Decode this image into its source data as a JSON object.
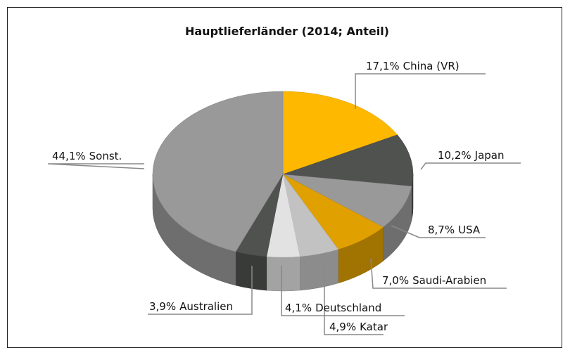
{
  "chart_data": {
    "type": "pie3d",
    "title": "Hauptlieferländer (2014; Anteil)",
    "categories": [
      "China (VR)",
      "Japan",
      "USA",
      "Saudi-Arabien",
      "Katar",
      "Deutschland",
      "Australien",
      "Sonst."
    ],
    "values": [
      17.1,
      10.2,
      8.7,
      7.0,
      4.9,
      4.1,
      3.9,
      44.1
    ],
    "value_labels": [
      "17,1%",
      "10,2%",
      "8,7%",
      "7,0%",
      "4,9%",
      "4,1%",
      "3,9%",
      "44,1%"
    ],
    "colors": [
      "#ffb800",
      "#4f524f",
      "#9a999a",
      "#e0a000",
      "#c2c2c2",
      "#e2e2e2",
      "#4f524f",
      "#9a999a"
    ]
  }
}
